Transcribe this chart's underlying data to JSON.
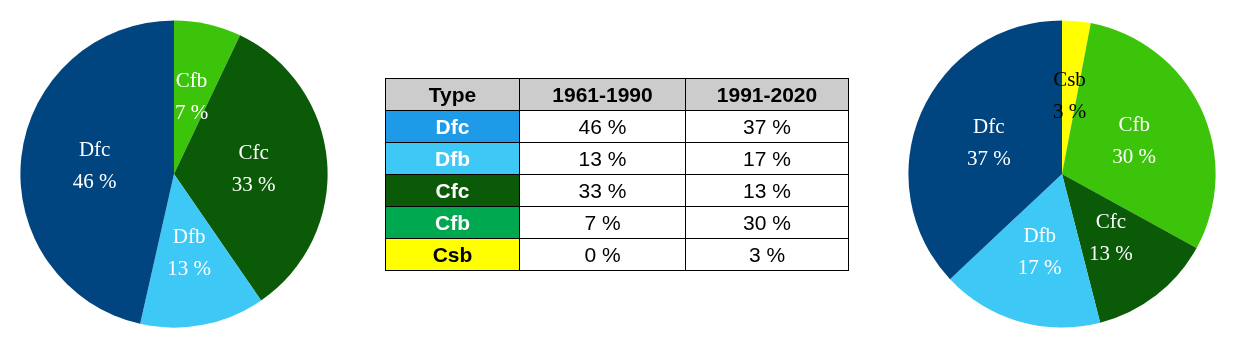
{
  "chart_data": [
    {
      "type": "pie",
      "categories": [
        "Cfb",
        "Cfc",
        "Dfb",
        "Dfc"
      ],
      "values": [
        7,
        33,
        13,
        46
      ],
      "value_labels": [
        "7 %",
        "33 %",
        "13 %",
        "46 %"
      ],
      "colors": [
        "#3cc40a",
        "#0b5a08",
        "#3ec8f5",
        "#00457f"
      ]
    },
    {
      "type": "other",
      "legend_title": "Type",
      "categories": [
        "Dfc",
        "Dfb",
        "Cfc",
        "Cfb",
        "Csb"
      ],
      "y_categories": [
        "1961-1990",
        "1991-2020"
      ],
      "colors": [
        "#1e9be8",
        "#3ec8f5",
        "#0b5a08",
        "#00a850",
        "#ffff00"
      ],
      "cell_labels": [
        [
          "46 %",
          "13 %",
          "33 %",
          "7 %",
          "0 %"
        ],
        [
          "37 %",
          "17 %",
          "13 %",
          "30 %",
          "3 %"
        ]
      ]
    },
    {
      "type": "pie",
      "categories": [
        "Csb",
        "Cfb",
        "Cfc",
        "Dfb",
        "Dfc"
      ],
      "values": [
        3,
        30,
        13,
        17,
        37
      ],
      "value_labels": [
        "3 %",
        "30 %",
        "13 %",
        "17 %",
        "37 %"
      ],
      "colors": [
        "#ffff00",
        "#3cc40a",
        "#0b5a08",
        "#3ec8f5",
        "#00457f"
      ]
    }
  ]
}
